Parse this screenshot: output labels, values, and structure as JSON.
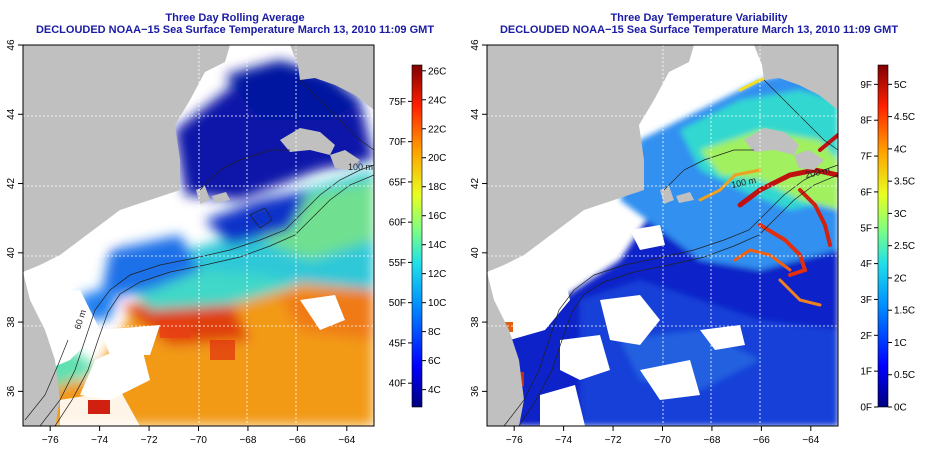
{
  "left_panel": {
    "title": "Three Day Rolling Average",
    "subtitle": "DECLOUDED NOAA−15 Sea Surface Temperature March 13, 2010 11:09 GMT",
    "x_ticks": [
      "−76",
      "−74",
      "−72",
      "−70",
      "−68",
      "−66",
      "−64"
    ],
    "y_ticks": [
      "36",
      "38",
      "40",
      "42",
      "44",
      "46"
    ],
    "colorbar_c": [
      "4C",
      "6C",
      "8C",
      "10C",
      "12C",
      "14C",
      "16C",
      "18C",
      "20C",
      "22C",
      "24C",
      "26C"
    ],
    "colorbar_f": [
      "40F",
      "45F",
      "50F",
      "55F",
      "60F",
      "65F",
      "70F",
      "75F"
    ],
    "contour_labels": [
      "60 m",
      "100 m"
    ]
  },
  "right_panel": {
    "title": "Three Day Temperature Variability",
    "subtitle": "DECLOUDED NOAA−15 Sea Surface Temperature March 13, 2010 11:09 GMT",
    "x_ticks": [
      "−76",
      "−74",
      "−72",
      "−70",
      "−68",
      "−66",
      "−64"
    ],
    "y_ticks": [
      "36",
      "38",
      "40",
      "42",
      "44",
      "46"
    ],
    "colorbar_c": [
      "0C",
      "0.5C",
      "1C",
      "1.5C",
      "2C",
      "2.5C",
      "3C",
      "3.5C",
      "4C",
      "4.5C",
      "5C"
    ],
    "colorbar_f": [
      "0F",
      "1F",
      "2F",
      "3F",
      "4F",
      "5F",
      "6F",
      "7F",
      "8F",
      "9F"
    ],
    "contour_labels": [
      "100 m",
      "200 m"
    ]
  },
  "colors": {
    "land": "#c0c0c0",
    "title": "#1a1aa6",
    "cold": "#0a14a8",
    "warm": "#f29a18"
  }
}
